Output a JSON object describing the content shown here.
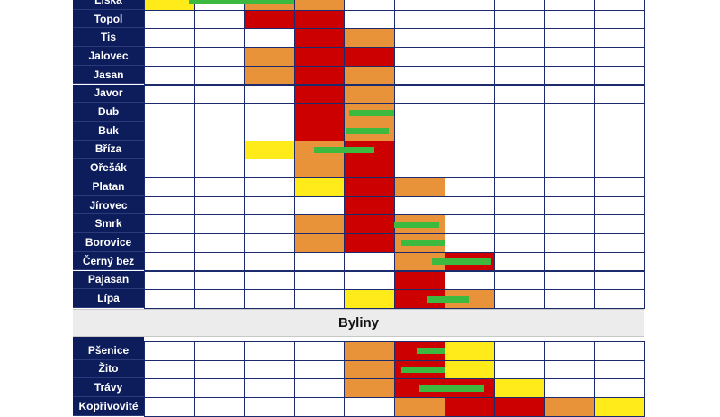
{
  "colors": {
    "label_bg": "#0d1d5c",
    "high": "#cc0000",
    "medium": "#e8923a",
    "low": "#ffeb1a",
    "none": "#ffffff",
    "main_season": "#3cb93f",
    "grid": "#1c2a6e",
    "section_bg": "#ececec"
  },
  "chart_data": {
    "type": "table",
    "columns_visible": 10,
    "intensity_legend": {
      "0": "none",
      "1": "low",
      "2": "medium",
      "3": "high"
    },
    "groups": [
      {
        "rows": [
          {
            "name": "Líska",
            "cells": [
              1,
              0,
              2,
              2,
              0,
              0,
              0,
              0,
              0,
              0
            ],
            "main": [
              0.9,
              3.0
            ]
          },
          {
            "name": "Topol",
            "cells": [
              0,
              0,
              3,
              3,
              0,
              0,
              0,
              0,
              0,
              0
            ]
          },
          {
            "name": "Tis",
            "cells": [
              0,
              0,
              0,
              3,
              2,
              0,
              0,
              0,
              0,
              0
            ]
          },
          {
            "name": "Jalovec",
            "cells": [
              0,
              0,
              2,
              3,
              3,
              0,
              0,
              0,
              0,
              0
            ]
          },
          {
            "name": "Jasan",
            "cells": [
              0,
              0,
              2,
              3,
              2,
              0,
              0,
              0,
              0,
              0
            ]
          },
          {
            "name": "Javor",
            "cells": [
              0,
              0,
              0,
              3,
              2,
              0,
              0,
              0,
              0,
              0
            ]
          },
          {
            "name": "Dub",
            "cells": [
              0,
              0,
              0,
              3,
              2,
              0,
              0,
              0,
              0,
              0
            ],
            "main": [
              4.1,
              5.0
            ]
          },
          {
            "name": "Buk",
            "cells": [
              0,
              0,
              0,
              3,
              2,
              0,
              0,
              0,
              0,
              0
            ],
            "main": [
              4.05,
              4.9
            ]
          },
          {
            "name": "Bříza",
            "cells": [
              0,
              0,
              1,
              2,
              3,
              0,
              0,
              0,
              0,
              0
            ],
            "main": [
              3.4,
              4.6
            ]
          },
          {
            "name": "Ořešák",
            "cells": [
              0,
              0,
              0,
              2,
              3,
              0,
              0,
              0,
              0,
              0
            ]
          },
          {
            "name": "Platan",
            "cells": [
              0,
              0,
              0,
              1,
              3,
              2,
              0,
              0,
              0,
              0
            ]
          },
          {
            "name": "Jírovec",
            "cells": [
              0,
              0,
              0,
              0,
              3,
              0,
              0,
              0,
              0,
              0
            ]
          },
          {
            "name": "Smrk",
            "cells": [
              0,
              0,
              0,
              2,
              3,
              2,
              0,
              0,
              0,
              0
            ],
            "main": [
              5.0,
              5.9
            ]
          },
          {
            "name": "Borovice",
            "cells": [
              0,
              0,
              0,
              2,
              3,
              2,
              0,
              0,
              0,
              0
            ],
            "main": [
              5.15,
              6.0
            ]
          },
          {
            "name": "Černý bez",
            "cells": [
              0,
              0,
              0,
              0,
              0,
              2,
              3,
              0,
              0,
              0
            ],
            "main": [
              5.75,
              6.95
            ]
          },
          {
            "name": "Pajasan",
            "cells": [
              0,
              0,
              0,
              0,
              0,
              3,
              0,
              0,
              0,
              0
            ]
          },
          {
            "name": "Lípa",
            "cells": [
              0,
              0,
              0,
              0,
              1,
              3,
              2,
              0,
              0,
              0
            ],
            "main": [
              5.65,
              6.5
            ]
          }
        ]
      },
      {
        "title": "Byliny",
        "rows": [
          {
            "name": "Pšenice",
            "cells": [
              0,
              0,
              0,
              0,
              2,
              3,
              1,
              0,
              0,
              0
            ],
            "main": [
              5.45,
              6.0
            ]
          },
          {
            "name": "Žito",
            "cells": [
              0,
              0,
              0,
              0,
              2,
              3,
              1,
              0,
              0,
              0
            ],
            "main": [
              5.15,
              6.0
            ]
          },
          {
            "name": "Trávy",
            "cells": [
              0,
              0,
              0,
              0,
              2,
              3,
              3,
              1,
              0,
              0
            ],
            "main": [
              5.5,
              6.8
            ]
          },
          {
            "name": "Kopřivovité",
            "cells": [
              0,
              0,
              0,
              0,
              0,
              2,
              3,
              3,
              2,
              1
            ]
          }
        ]
      }
    ]
  }
}
